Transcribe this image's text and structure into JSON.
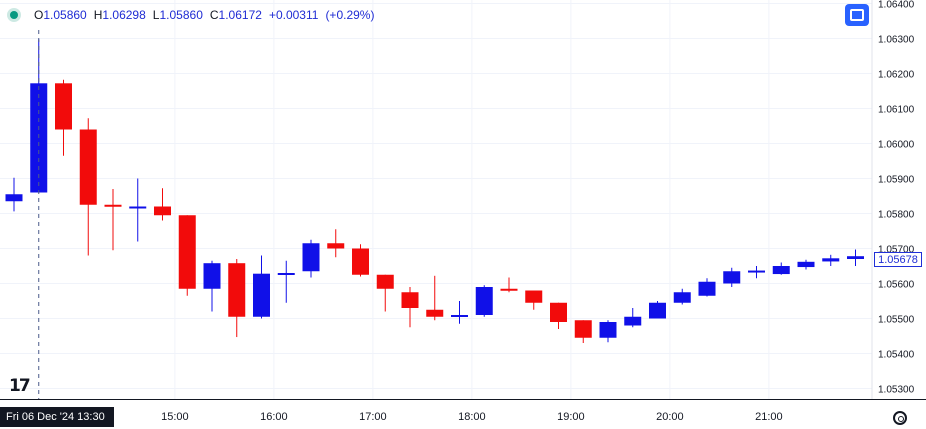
{
  "legend": {
    "open_label": "O",
    "open": "1.05860",
    "high_label": "H",
    "high": "1.06298",
    "low_label": "L",
    "low": "1.05860",
    "close_label": "C",
    "close": "1.06172",
    "change": "+0.00311",
    "change_pct": "(+0.29%)"
  },
  "current_price_label": "1.05678",
  "cursor_date_label": "Fri 06 Dec '24   13:30",
  "logo_text": "17",
  "colors": {
    "up": "#1010e8",
    "down": "#f20b0b",
    "grid": "#f0f3fa",
    "axis_text": "#131722",
    "accent": "#2962ff"
  },
  "icons": {
    "control": "window-icon",
    "settings": "settings-icon",
    "status": "status-dot-icon"
  },
  "chart_data": {
    "type": "candlestick",
    "ylim": [
      1.0527,
      1.0641
    ],
    "y_ticks": [
      "1.06400",
      "1.06300",
      "1.06200",
      "1.06100",
      "1.06000",
      "1.05900",
      "1.05800",
      "1.05700",
      "1.05600",
      "1.05500",
      "1.05400",
      "1.05300"
    ],
    "x_ticks": [
      "15:00",
      "16:00",
      "17:00",
      "18:00",
      "19:00",
      "20:00",
      "21:00"
    ],
    "x_tick_index": [
      6.5,
      10.5,
      14.5,
      18.5,
      22.5,
      26.5,
      30.5
    ],
    "interval": "15m",
    "candles": [
      {
        "o": 1.05835,
        "h": 1.05902,
        "l": 1.05806,
        "c": 1.05855
      },
      {
        "o": 1.0586,
        "h": 1.06298,
        "l": 1.0586,
        "c": 1.06172
      },
      {
        "o": 1.06172,
        "h": 1.06182,
        "l": 1.05965,
        "c": 1.0604
      },
      {
        "o": 1.0604,
        "h": 1.06072,
        "l": 1.0568,
        "c": 1.05825
      },
      {
        "o": 1.05825,
        "h": 1.0587,
        "l": 1.05695,
        "c": 1.0582
      },
      {
        "o": 1.05818,
        "h": 1.059,
        "l": 1.0572,
        "c": 1.0582
      },
      {
        "o": 1.0582,
        "h": 1.05872,
        "l": 1.0578,
        "c": 1.05795
      },
      {
        "o": 1.05795,
        "h": 1.05795,
        "l": 1.05565,
        "c": 1.05585
      },
      {
        "o": 1.05585,
        "h": 1.05665,
        "l": 1.0552,
        "c": 1.05658
      },
      {
        "o": 1.05658,
        "h": 1.0567,
        "l": 1.05447,
        "c": 1.05505
      },
      {
        "o": 1.05505,
        "h": 1.0568,
        "l": 1.055,
        "c": 1.05628
      },
      {
        "o": 1.0563,
        "h": 1.05665,
        "l": 1.05545,
        "c": 1.0563
      },
      {
        "o": 1.05635,
        "h": 1.05725,
        "l": 1.05617,
        "c": 1.05715
      },
      {
        "o": 1.05715,
        "h": 1.05755,
        "l": 1.05675,
        "c": 1.057
      },
      {
        "o": 1.057,
        "h": 1.05712,
        "l": 1.0562,
        "c": 1.05625
      },
      {
        "o": 1.05625,
        "h": 1.05625,
        "l": 1.0552,
        "c": 1.05585
      },
      {
        "o": 1.05575,
        "h": 1.0559,
        "l": 1.05475,
        "c": 1.0553
      },
      {
        "o": 1.05525,
        "h": 1.05622,
        "l": 1.05495,
        "c": 1.05505
      },
      {
        "o": 1.0551,
        "h": 1.0555,
        "l": 1.05485,
        "c": 1.0551
      },
      {
        "o": 1.0551,
        "h": 1.05595,
        "l": 1.05505,
        "c": 1.0559
      },
      {
        "o": 1.05585,
        "h": 1.05617,
        "l": 1.05575,
        "c": 1.0558
      },
      {
        "o": 1.0558,
        "h": 1.0558,
        "l": 1.05525,
        "c": 1.05545
      },
      {
        "o": 1.05545,
        "h": 1.05545,
        "l": 1.0547,
        "c": 1.0549
      },
      {
        "o": 1.05495,
        "h": 1.05495,
        "l": 1.0543,
        "c": 1.05445
      },
      {
        "o": 1.05445,
        "h": 1.05495,
        "l": 1.05432,
        "c": 1.0549
      },
      {
        "o": 1.0548,
        "h": 1.0553,
        "l": 1.05475,
        "c": 1.05505
      },
      {
        "o": 1.055,
        "h": 1.0555,
        "l": 1.055,
        "c": 1.05545
      },
      {
        "o": 1.05545,
        "h": 1.05585,
        "l": 1.0554,
        "c": 1.05575
      },
      {
        "o": 1.05565,
        "h": 1.05615,
        "l": 1.05563,
        "c": 1.05605
      },
      {
        "o": 1.056,
        "h": 1.05645,
        "l": 1.0559,
        "c": 1.05635
      },
      {
        "o": 1.05635,
        "h": 1.0565,
        "l": 1.05615,
        "c": 1.05637
      },
      {
        "o": 1.05627,
        "h": 1.0566,
        "l": 1.05625,
        "c": 1.0565
      },
      {
        "o": 1.05647,
        "h": 1.05668,
        "l": 1.0564,
        "c": 1.05662
      },
      {
        "o": 1.05663,
        "h": 1.05682,
        "l": 1.0565,
        "c": 1.05672
      },
      {
        "o": 1.0567,
        "h": 1.05697,
        "l": 1.0565,
        "c": 1.05678
      }
    ]
  }
}
